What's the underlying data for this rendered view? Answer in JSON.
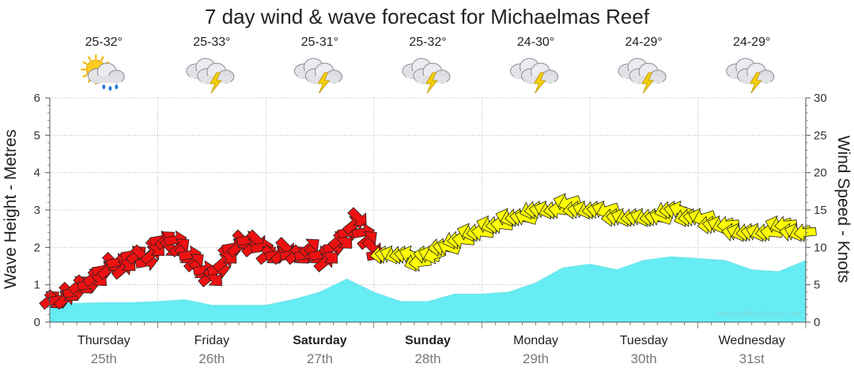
{
  "chart_data": {
    "type": "area",
    "title": "7 day wind & wave forecast for Michaelmas Reef",
    "ylabel_left": "Wave Height - Metres",
    "ylabel_right": "Wind Speed - Knots",
    "ylim_left": [
      0,
      6
    ],
    "ylim_right": [
      0,
      30
    ],
    "yticks_left": [
      "0",
      "1",
      "2",
      "3",
      "4",
      "5",
      "6"
    ],
    "yticks_right": [
      "0",
      "5",
      "10",
      "15",
      "20",
      "25",
      "30"
    ],
    "grid": true,
    "watermark": "www.seabreeze.com.au",
    "days": [
      {
        "day": "Thursday",
        "date": "25th",
        "temp": "25-32°",
        "icon": "sun-cloud-rain-icon",
        "bold": false
      },
      {
        "day": "Friday",
        "date": "26th",
        "temp": "25-33°",
        "icon": "thunderstorm-icon",
        "bold": false
      },
      {
        "day": "Saturday",
        "date": "27th",
        "temp": "25-31°",
        "icon": "thunderstorm-icon",
        "bold": true
      },
      {
        "day": "Sunday",
        "date": "28th",
        "temp": "25-32°",
        "icon": "thunderstorm-icon",
        "bold": true
      },
      {
        "day": "Monday",
        "date": "29th",
        "temp": "24-30°",
        "icon": "thunderstorm-icon",
        "bold": false
      },
      {
        "day": "Tuesday",
        "date": "30th",
        "temp": "24-29°",
        "icon": "thunderstorm-icon",
        "bold": false
      },
      {
        "day": "Wednesday",
        "date": "31st",
        "temp": "24-29°",
        "icon": "thunderstorm-icon",
        "bold": false
      }
    ],
    "wave_series": {
      "name": "",
      "x_days": [
        0,
        0.25,
        0.5,
        0.75,
        1,
        1.25,
        1.5,
        1.75,
        2,
        2.25,
        2.5,
        2.75,
        3,
        3.25,
        3.5,
        3.75,
        4,
        4.25,
        4.5,
        4.75,
        5,
        5.25,
        5.5,
        5.75,
        6,
        6.25,
        6.5,
        6.75,
        7
      ],
      "values": [
        0.5,
        0.5,
        0.52,
        0.52,
        0.55,
        0.6,
        0.45,
        0.45,
        0.45,
        0.6,
        0.8,
        1.15,
        0.8,
        0.55,
        0.55,
        0.75,
        0.75,
        0.8,
        1.05,
        1.45,
        1.55,
        1.4,
        1.65,
        1.75,
        1.7,
        1.65,
        1.4,
        1.35,
        1.65
      ]
    },
    "wind_arrows": {
      "start_day": 0,
      "end_day": 7,
      "knots": [
        3,
        3,
        3,
        3,
        4,
        4,
        5,
        5,
        5,
        6,
        6,
        7,
        7,
        8,
        8,
        7,
        8,
        9,
        9,
        9,
        8,
        9,
        10,
        11,
        11,
        10,
        11,
        10,
        9,
        9,
        8,
        7,
        7,
        6,
        6,
        7,
        8,
        9,
        10,
        10,
        11,
        11,
        10,
        11,
        10,
        9,
        9,
        9,
        9,
        10,
        9,
        9,
        9,
        9,
        10,
        9,
        9,
        8,
        9,
        10,
        11,
        11,
        12,
        13,
        14,
        12,
        11,
        10,
        9,
        9,
        9,
        9,
        9,
        9,
        9,
        9,
        8,
        8,
        9,
        9,
        9,
        10,
        10,
        10,
        11,
        11,
        11,
        12,
        12,
        12,
        12,
        13,
        13,
        13,
        13,
        14,
        14,
        14,
        14,
        14,
        15,
        15,
        15,
        15,
        15,
        15,
        15,
        16,
        16,
        15,
        15,
        15,
        15,
        15,
        15,
        15,
        15,
        14,
        14,
        14,
        14,
        14,
        14,
        14,
        14,
        14,
        14,
        14,
        15,
        15,
        15,
        15,
        14,
        14,
        14,
        14,
        14,
        13,
        13,
        13,
        13,
        13,
        12,
        12,
        12,
        12,
        12,
        12,
        12,
        12,
        12,
        13,
        13,
        13,
        12,
        12,
        12,
        12
      ],
      "colors": {
        "strong": "#ee1111",
        "moderate": "#ffff00"
      },
      "color_threshold_knots": 11,
      "strong_until_day": 3.05
    }
  }
}
